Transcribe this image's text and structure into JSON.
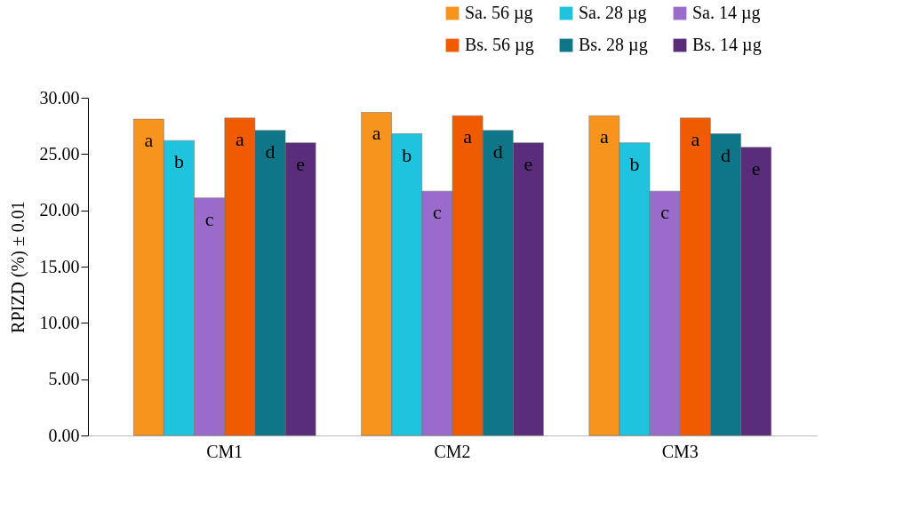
{
  "chart_data": {
    "type": "bar",
    "ylabel": "RPIZD (%) ± 0.01",
    "categories": [
      "CM1",
      "CM2",
      "CM3"
    ],
    "series": [
      {
        "name": "Sa. 56 µg",
        "color": "#f7941d",
        "values": [
          28.1,
          28.7,
          28.4
        ],
        "value_labels": [
          "a",
          "a",
          "a"
        ]
      },
      {
        "name": "Sa. 28 µg",
        "color": "#1fc3de",
        "values": [
          26.2,
          26.8,
          26.0
        ],
        "value_labels": [
          "b",
          "b",
          "b"
        ]
      },
      {
        "name": "Sa. 14 µg",
        "color": "#9b6bcb",
        "values": [
          21.1,
          21.7,
          21.7
        ],
        "value_labels": [
          "c",
          "c",
          "c"
        ]
      },
      {
        "name": "Bs. 56 µg",
        "color": "#f05a00",
        "values": [
          28.2,
          28.4,
          28.2
        ],
        "value_labels": [
          "a",
          "a",
          "a"
        ]
      },
      {
        "name": "Bs. 28 µg",
        "color": "#0e7688",
        "values": [
          27.1,
          27.1,
          26.8
        ],
        "value_labels": [
          "d",
          "d",
          "d"
        ]
      },
      {
        "name": "Bs. 14 µg",
        "color": "#5a2d7c",
        "values": [
          26.0,
          26.0,
          25.6
        ],
        "value_labels": [
          "e",
          "e",
          "e"
        ]
      }
    ],
    "ylim": [
      0,
      30
    ],
    "yticks": [
      {
        "value": 0,
        "label": "0.00"
      },
      {
        "value": 5,
        "label": "5.00"
      },
      {
        "value": 10,
        "label": "10.00"
      },
      {
        "value": 15,
        "label": "15.00"
      },
      {
        "value": 20,
        "label": "20.00"
      },
      {
        "value": 25,
        "label": "25.00"
      },
      {
        "value": 30,
        "label": "30.00"
      }
    ],
    "grid": false,
    "legend": "top right"
  }
}
